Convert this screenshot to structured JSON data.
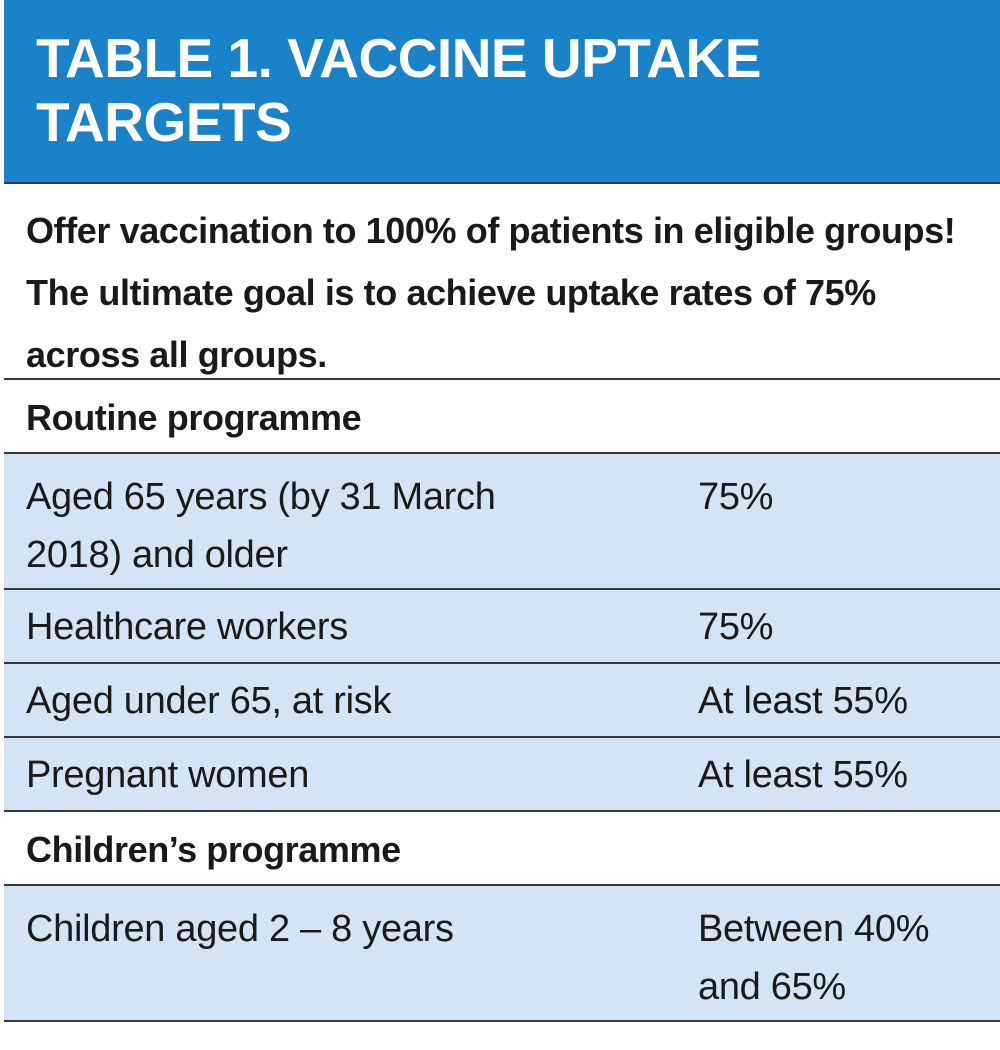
{
  "title": "TABLE 1. VACCINE UPTAKE TARGETS",
  "intro": "Offer vaccination to 100% of patients in eligible groups! The ultimate goal is to achieve uptake rates of 75% across all groups.",
  "sections": [
    {
      "heading": "Routine programme",
      "rows": [
        {
          "group": "Aged 65 years (by 31 March 2018) and older",
          "target": "75%"
        },
        {
          "group": "Healthcare workers",
          "target": "75%"
        },
        {
          "group": "Aged under 65, at risk",
          "target": "At least 55%"
        },
        {
          "group": "Pregnant women",
          "target": "At least 55%"
        }
      ]
    },
    {
      "heading": "Children’s programme",
      "rows": [
        {
          "group": "Children aged 2 – 8 years",
          "target": "Between 40% and 65%"
        }
      ]
    }
  ],
  "colors": {
    "title_background": "#1a82c8",
    "row_background": "#d5e4f4",
    "rule": "#3a3a3a"
  }
}
